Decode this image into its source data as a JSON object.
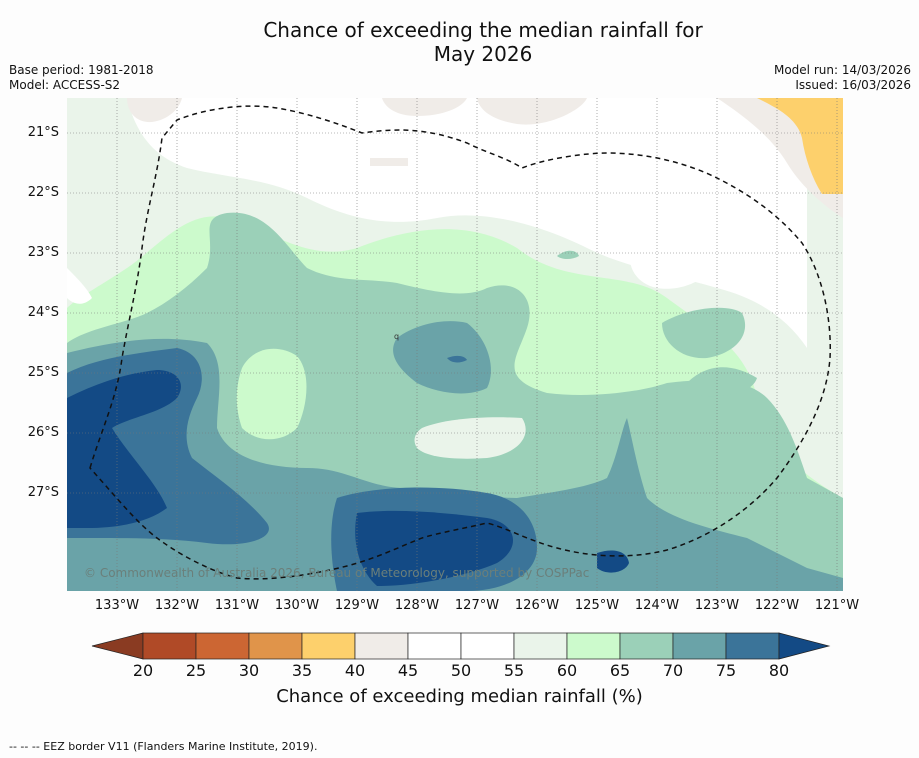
{
  "title_line1": "Chance of exceeding the median rainfall for",
  "title_line2": "May 2026",
  "meta": {
    "base_period": "Base period: 1981-2018",
    "model": "Model: ACCESS-S2",
    "model_run": "Model run: 14/03/2026",
    "issued": "Issued: 16/03/2026"
  },
  "map": {
    "lat_labels": [
      "21°S",
      "22°S",
      "23°S",
      "24°S",
      "25°S",
      "26°S",
      "27°S"
    ],
    "lon_labels": [
      "133°W",
      "132°W",
      "131°W",
      "130°W",
      "129°W",
      "128°W",
      "127°W",
      "126°W",
      "125°W",
      "124°W",
      "123°W",
      "122°W",
      "121°W"
    ],
    "copyright": "© Commonwealth of Australia 2026, Bureau of Meteorology, supported by COSPPac",
    "stray_label": "q"
  },
  "colorbar": {
    "ticks": [
      "20",
      "25",
      "30",
      "35",
      "40",
      "45",
      "50",
      "55",
      "60",
      "65",
      "70",
      "75",
      "80"
    ],
    "label": "Chance of exceeding median rainfall (%)",
    "colors": [
      "#8a3b22",
      "#b04a27",
      "#cc6633",
      "#e0944a",
      "#fdd06c",
      "#f0ece8",
      "#ffffff",
      "#ffffff",
      "#eaf4ea",
      "#ccfacc",
      "#9bd0b8",
      "#6aa3a8",
      "#3b7499",
      "#134a85"
    ]
  },
  "footnote": "-- -- -- EEZ border V11 (Flanders Marine Institute, 2019)."
}
